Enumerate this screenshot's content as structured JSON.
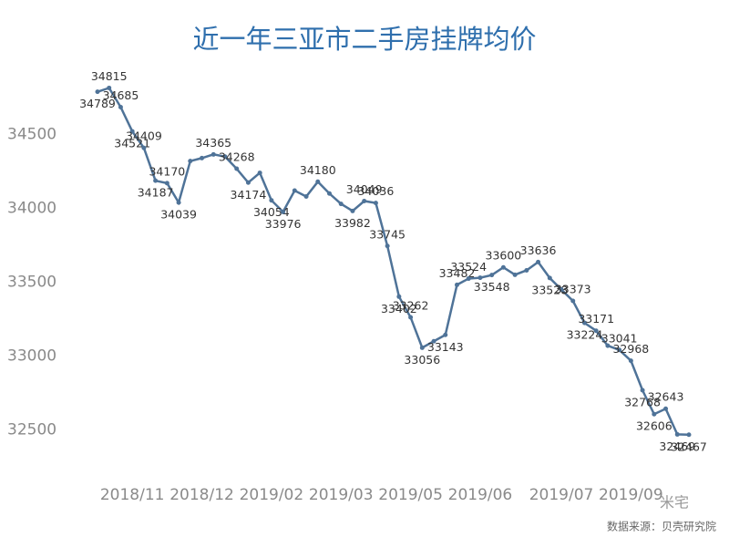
{
  "chart_data": {
    "type": "line",
    "title": "近一年三亚市二手房挂牌均价",
    "source": "数据来源：贝壳研究院",
    "watermark": "米宅",
    "categories": [
      null,
      null,
      null,
      "2018/11",
      null,
      null,
      null,
      null,
      null,
      "2018/12",
      null,
      null,
      null,
      null,
      null,
      "2019/02",
      null,
      null,
      null,
      null,
      null,
      "2019/03",
      null,
      null,
      null,
      null,
      null,
      "2019/05",
      null,
      null,
      null,
      null,
      null,
      "2019/06",
      null,
      null,
      null,
      null,
      null,
      null,
      "2019/07",
      null,
      null,
      null,
      null,
      null,
      "2019/09",
      null,
      null,
      null,
      null,
      null
    ],
    "values": [
      34789,
      34815,
      34685,
      34521,
      34409,
      34187,
      34170,
      34039,
      34320,
      34340,
      34365,
      34350,
      34268,
      34174,
      34240,
      34054,
      33976,
      34120,
      34080,
      34180,
      34100,
      34030,
      33982,
      34049,
      34036,
      33745,
      33402,
      33262,
      33056,
      33100,
      33143,
      33482,
      33524,
      33530,
      33548,
      33600,
      33550,
      33580,
      33636,
      33528,
      33450,
      33373,
      33224,
      33171,
      33070,
      33041,
      32968,
      32768,
      32606,
      32643,
      32469,
      32467
    ],
    "value_labels": [
      "34789",
      "34815",
      "34685",
      "34521",
      "34409",
      "34187",
      "34170",
      "34039",
      null,
      null,
      "34365",
      null,
      "34268",
      "34174",
      null,
      "34054",
      "33976",
      null,
      null,
      "34180",
      null,
      null,
      "33982",
      "34049",
      "34036",
      "33745",
      "33402",
      "33262",
      "33056",
      null,
      "33143",
      "33482",
      "33524",
      null,
      "33548",
      "33600",
      null,
      null,
      "33636",
      "33528",
      null,
      "33373",
      "33224",
      "33171",
      null,
      "33041",
      "32968",
      "32768",
      "32606",
      "32643",
      "32469",
      "32467"
    ],
    "color": "#4f7398",
    "ylim": [
      32200,
      35040
    ],
    "yticks": [
      32500,
      33000,
      33500,
      34000,
      34500
    ],
    "grid": false
  }
}
